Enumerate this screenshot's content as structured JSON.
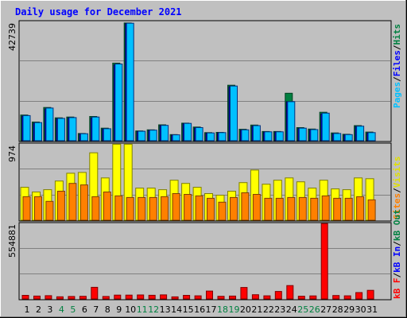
{
  "title": "Daily usage for December 2021",
  "colors": {
    "title": "#0000ff",
    "pages": "#00c0ff",
    "pages_edge": "#003080",
    "files": "#0000ff",
    "hits": "#008040",
    "visits": "#ffff00",
    "visits_edge": "#808000",
    "sites": "#ff8000",
    "sites_edge": "#804000",
    "kbin": "#0000ff",
    "kbout": "#008040",
    "kbf": "#ff0000",
    "kbf_edge": "#800000",
    "weekday_label": "#000000",
    "weekend_label": "#008040"
  },
  "labels": {
    "pages": "Pages",
    "files": "Files",
    "hits": "Hits",
    "visits": "Visits",
    "sites": "Sites",
    "kbout": "kB Out",
    "kbin": "kB In",
    "kbf": "kB F",
    "sep": "/"
  },
  "ymax": {
    "hits": "42739",
    "visits": "974",
    "kb": "554881"
  },
  "chart_data": [
    {
      "type": "bar",
      "panel": "hits",
      "categories": [
        "1",
        "2",
        "3",
        "4",
        "5",
        "6",
        "7",
        "8",
        "9",
        "10",
        "11",
        "12",
        "13",
        "14",
        "15",
        "16",
        "17",
        "18",
        "19",
        "20",
        "21",
        "22",
        "23",
        "24",
        "25",
        "26",
        "27",
        "28",
        "29",
        "30",
        "31"
      ],
      "ylim": [
        0,
        42739
      ],
      "series": [
        {
          "name": "Hits",
          "values": [
            9200,
            6700,
            11900,
            8200,
            8500,
            2600,
            8700,
            4500,
            27800,
            42200,
            3500,
            3900,
            5700,
            2200,
            6300,
            4900,
            2900,
            3000,
            19900,
            4100,
            5600,
            3300,
            3300,
            17000,
            4700,
            4200,
            10200,
            2800,
            2300,
            5400,
            3100
          ]
        },
        {
          "name": "Files",
          "values": [
            8800,
            6300,
            11400,
            7900,
            8200,
            2400,
            8200,
            4200,
            27200,
            42000,
            3300,
            3700,
            5400,
            2000,
            6100,
            4600,
            2700,
            2800,
            19400,
            3800,
            5200,
            3100,
            3100,
            14000,
            4400,
            3900,
            9600,
            2500,
            2100,
            5100,
            2800
          ]
        },
        {
          "name": "Pages",
          "values": [
            9000,
            6500,
            11700,
            8000,
            8300,
            2500,
            8500,
            4300,
            27500,
            42100,
            3400,
            3800,
            5500,
            2100,
            6200,
            4700,
            2800,
            2900,
            19600,
            3900,
            5400,
            3200,
            3200,
            14000,
            4500,
            4000,
            9900,
            2600,
            2200,
            5200,
            2900
          ]
        }
      ]
    },
    {
      "type": "bar",
      "panel": "visits",
      "categories": [
        "1",
        "2",
        "3",
        "4",
        "5",
        "6",
        "7",
        "8",
        "9",
        "10",
        "11",
        "12",
        "13",
        "14",
        "15",
        "16",
        "17",
        "18",
        "19",
        "20",
        "21",
        "22",
        "23",
        "24",
        "25",
        "26",
        "27",
        "28",
        "29",
        "30",
        "31"
      ],
      "ylim": [
        0,
        974
      ],
      "series": [
        {
          "name": "Visits",
          "values": [
            420,
            360,
            390,
            500,
            600,
            610,
            860,
            540,
            970,
            970,
            410,
            410,
            390,
            510,
            470,
            420,
            340,
            320,
            370,
            480,
            640,
            460,
            510,
            540,
            490,
            410,
            510,
            400,
            390,
            540,
            530
          ]
        },
        {
          "name": "Sites",
          "values": [
            300,
            300,
            240,
            370,
            470,
            450,
            300,
            360,
            310,
            290,
            290,
            290,
            300,
            340,
            330,
            310,
            280,
            230,
            290,
            350,
            330,
            280,
            280,
            290,
            290,
            280,
            310,
            280,
            280,
            300,
            260
          ]
        }
      ]
    },
    {
      "type": "bar",
      "panel": "kbytes",
      "categories": [
        "1",
        "2",
        "3",
        "4",
        "5",
        "6",
        "7",
        "8",
        "9",
        "10",
        "11",
        "12",
        "13",
        "14",
        "15",
        "16",
        "17",
        "18",
        "19",
        "20",
        "21",
        "22",
        "23",
        "24",
        "25",
        "26",
        "27",
        "28",
        "29",
        "30",
        "31"
      ],
      "ylim": [
        0,
        554881
      ],
      "series": [
        {
          "name": "kB F",
          "values": [
            26000,
            21000,
            24000,
            16000,
            18000,
            19000,
            85000,
            18000,
            28000,
            28000,
            29000,
            27000,
            30000,
            15000,
            26000,
            23000,
            58000,
            19000,
            21000,
            84000,
            31000,
            23000,
            55000,
            98000,
            20000,
            22000,
            554000,
            25000,
            23000,
            47000,
            63000
          ]
        }
      ]
    }
  ],
  "weekend_days": [
    4,
    5,
    11,
    12,
    18,
    19,
    25,
    26
  ]
}
